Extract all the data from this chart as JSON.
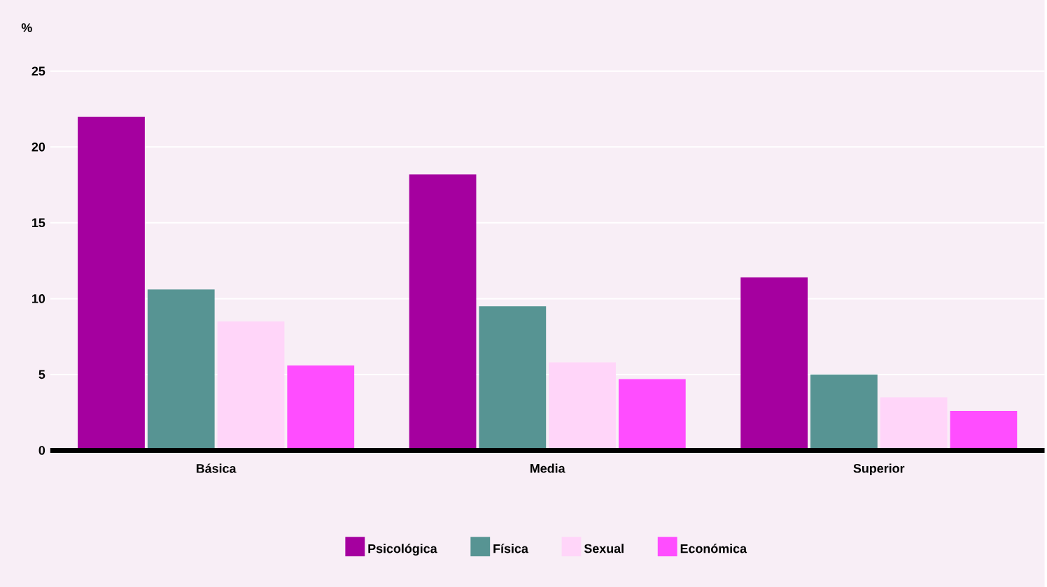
{
  "chart_data": {
    "type": "bar",
    "ylabel": "%",
    "categories": [
      "Básica",
      "Media",
      "Superior"
    ],
    "series": [
      {
        "name": "Psicológica",
        "color": "#a5009f",
        "values": [
          22,
          18.2,
          11.4
        ]
      },
      {
        "name": "Física",
        "color": "#579493",
        "values": [
          10.6,
          9.5,
          5.0
        ]
      },
      {
        "name": "Sexual",
        "color": "#ffd5f9",
        "values": [
          8.5,
          5.8,
          3.5
        ]
      },
      {
        "name": "Económica",
        "color": "#ff4dff",
        "values": [
          5.6,
          4.7,
          2.6
        ]
      }
    ],
    "ylim": [
      0,
      25
    ],
    "yticks": [
      0,
      5,
      10,
      15,
      20,
      25
    ],
    "grid": "y",
    "legend": "bottom"
  }
}
